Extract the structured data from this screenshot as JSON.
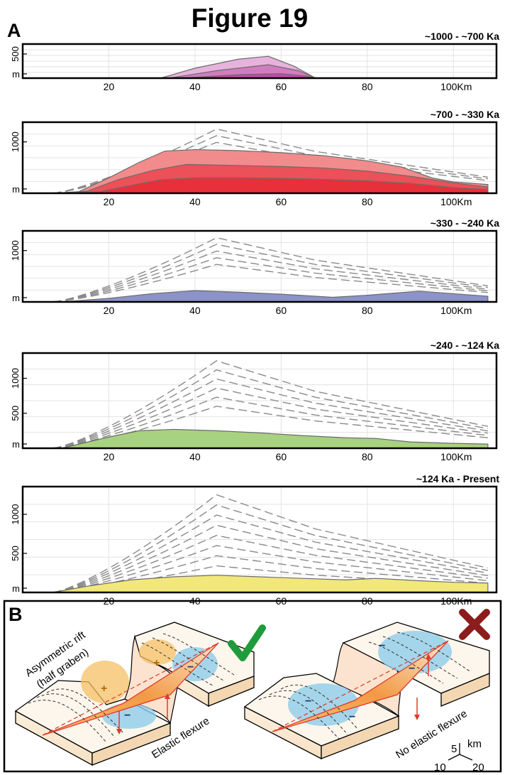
{
  "figure": {
    "title": "Figure 19",
    "panel_a_label": "A",
    "panel_b_label": "B"
  },
  "colors": {
    "frame": "#000000",
    "grid": "#e3e3e3",
    "dashed": "#8a8a8a",
    "magenta": "#c04aa8",
    "red": "#e8303a",
    "blue": "#8b93c9",
    "green": "#a8d27f",
    "yellow": "#f2e77a",
    "check": "#1f9b3b",
    "cross": "#8d1c1c",
    "fault": "#e03a2c",
    "positive": "#f5b43a",
    "negative": "#86c9e8"
  },
  "chart_data": [
    {
      "type": "area",
      "title": "~1000 - ~700 Ka",
      "x_unit": "Km",
      "xlim": [
        0,
        110
      ],
      "ylim": [
        0,
        600
      ],
      "x_tick_labels": [
        "20",
        "40",
        "60",
        "80",
        "100Km"
      ],
      "y_tick_labels": [
        "500",
        "m"
      ],
      "series": [
        {
          "layer": 1,
          "x": [
            32,
            40,
            50,
            57,
            63,
            68
          ],
          "y": [
            0,
            200,
            380,
            440,
            240,
            0
          ]
        },
        {
          "layer": 2,
          "x": [
            34,
            45,
            57,
            64,
            68
          ],
          "y": [
            0,
            150,
            270,
            150,
            0
          ]
        },
        {
          "layer": 3,
          "x": [
            37,
            50,
            60,
            66,
            68
          ],
          "y": [
            0,
            70,
            90,
            40,
            0
          ]
        }
      ]
    },
    {
      "type": "area",
      "title": "~700 - ~330 Ka",
      "x_unit": "Km",
      "xlim": [
        0,
        110
      ],
      "ylim": [
        0,
        1300
      ],
      "x_tick_labels": [
        "20",
        "40",
        "60",
        "80",
        "100Km"
      ],
      "y_tick_labels": [
        "1000",
        "m"
      ],
      "series": [
        {
          "layer": 1,
          "x": [
            7,
            13,
            20,
            27,
            33,
            40,
            50,
            60,
            70,
            80,
            88,
            95,
            100,
            108
          ],
          "y": [
            0,
            30,
            300,
            600,
            820,
            850,
            830,
            790,
            730,
            630,
            510,
            300,
            220,
            170
          ]
        },
        {
          "layer": 2,
          "x": [
            7,
            15,
            22,
            30,
            38,
            50,
            60,
            70,
            80,
            90,
            100,
            108
          ],
          "y": [
            0,
            40,
            260,
            440,
            560,
            540,
            520,
            490,
            430,
            330,
            200,
            120
          ]
        },
        {
          "layer": 3,
          "x": [
            7,
            18,
            25,
            32,
            40,
            50,
            60,
            70,
            80,
            90,
            100,
            108
          ],
          "y": [
            0,
            30,
            150,
            260,
            300,
            300,
            290,
            270,
            240,
            190,
            110,
            70
          ]
        }
      ]
    },
    {
      "type": "area",
      "title": "~330 - ~240 Ka",
      "x_unit": "Km",
      "xlim": [
        0,
        110
      ],
      "ylim": [
        0,
        1300
      ],
      "x_tick_labels": [
        "20",
        "40",
        "60",
        "80",
        "100Km"
      ],
      "y_tick_labels": [
        "1000",
        "m"
      ],
      "series": [
        {
          "layer": 1,
          "x": [
            9,
            20,
            30,
            40,
            50,
            60,
            72,
            80,
            92,
            100,
            108
          ],
          "y": [
            0,
            70,
            160,
            220,
            190,
            150,
            90,
            130,
            210,
            160,
            110
          ]
        }
      ]
    },
    {
      "type": "area",
      "title": "~240 - ~124 Ka",
      "x_unit": "Km",
      "xlim": [
        0,
        110
      ],
      "ylim": [
        0,
        1300
      ],
      "x_tick_labels": [
        "20",
        "40",
        "60",
        "80",
        "100Km"
      ],
      "y_tick_labels": [
        "1000",
        "500",
        "m"
      ],
      "series": [
        {
          "layer": 1,
          "x": [
            9,
            20,
            27,
            35,
            45,
            55,
            65,
            75,
            82,
            90,
            100,
            108
          ],
          "y": [
            0,
            160,
            250,
            270,
            250,
            220,
            180,
            150,
            140,
            90,
            70,
            60
          ]
        }
      ]
    },
    {
      "type": "area",
      "title": "~124 Ka - Present",
      "x_unit": "Km",
      "xlim": [
        0,
        110
      ],
      "ylim": [
        0,
        1300
      ],
      "x_tick_labels": [
        "20",
        "40",
        "60",
        "80",
        "100Km"
      ],
      "y_tick_labels": [
        "1000",
        "500",
        "m"
      ],
      "series": [
        {
          "layer": 1,
          "x": [
            7,
            15,
            25,
            35,
            45,
            55,
            65,
            75,
            82,
            92,
            100,
            108
          ],
          "y": [
            0,
            80,
            160,
            200,
            220,
            200,
            180,
            160,
            180,
            150,
            130,
            120
          ]
        }
      ]
    }
  ],
  "panel_b": {
    "left_title": "Asymmetric rift\n(half graben)",
    "left_caption": "Elastic flexure",
    "right_caption": "No elastic flexure",
    "scale_unit": "km",
    "scale_labels": [
      "5",
      "10",
      "20"
    ],
    "plus_mark": "+",
    "minus_mark": "−"
  }
}
